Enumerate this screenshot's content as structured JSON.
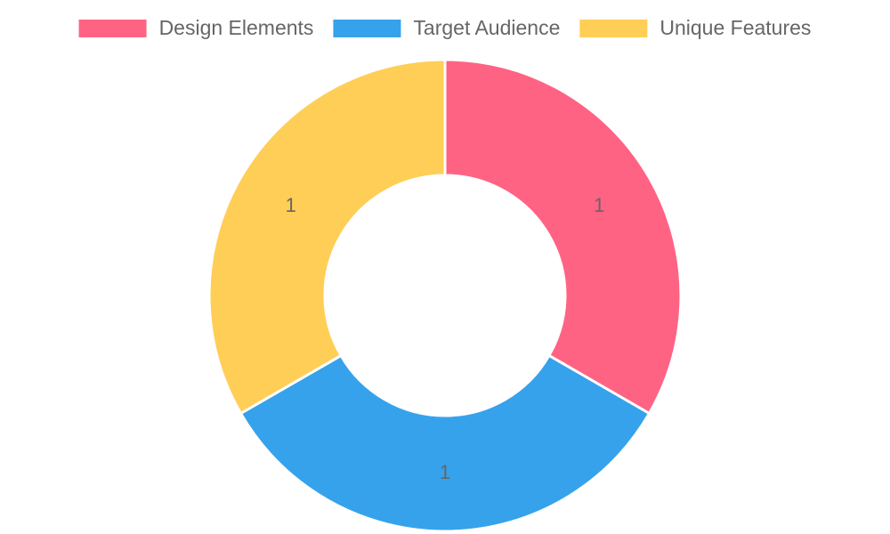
{
  "chart_data": {
    "type": "doughnut",
    "categories": [
      "Design Elements",
      "Target Audience",
      "Unique Features"
    ],
    "values": [
      1,
      1,
      1
    ],
    "colors": [
      "#ff6384",
      "#36a2eb",
      "#ffce56"
    ],
    "legend": "top"
  }
}
